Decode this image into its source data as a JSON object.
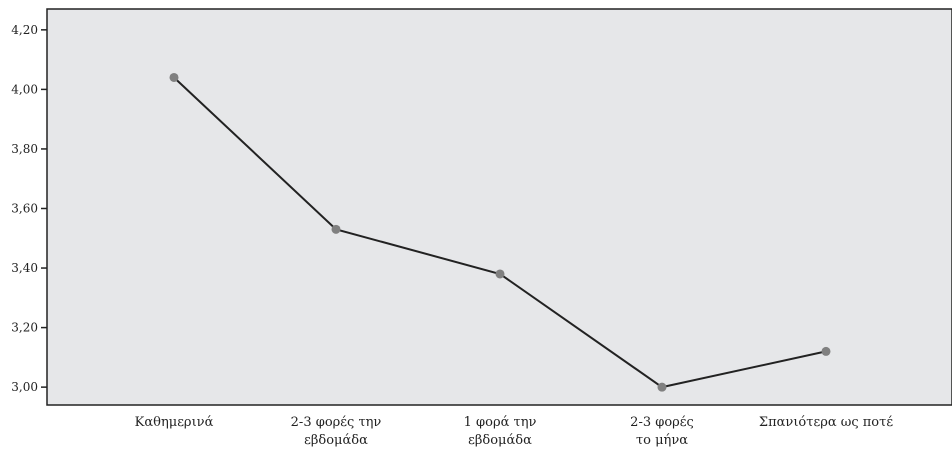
{
  "chart_data": {
    "type": "line",
    "title": "",
    "xlabel": "",
    "ylabel": "",
    "categories": [
      [
        "Καθημερινά"
      ],
      [
        "2-3 φορές την",
        "εβδομάδα"
      ],
      [
        "1 φορά την",
        "εβδομάδα"
      ],
      [
        "2-3 φορές",
        "το μήνα"
      ],
      [
        "Σπανιότερα ως ποτέ"
      ]
    ],
    "values": [
      4.04,
      3.53,
      3.38,
      3.0,
      3.12
    ],
    "ylim": [
      2.94,
      4.27
    ],
    "yticks": [
      "4,20",
      "4,00",
      "3,80",
      "3,60",
      "3,40",
      "3,20",
      "3,00"
    ],
    "ytick_values": [
      4.2,
      4.0,
      3.8,
      3.6,
      3.4,
      3.2,
      3.0
    ],
    "grid": false,
    "legend": "none",
    "colors": {
      "plot_background": "#e6e7e9",
      "line": "#222222",
      "marker": "#808080",
      "axis": "#222222"
    }
  }
}
